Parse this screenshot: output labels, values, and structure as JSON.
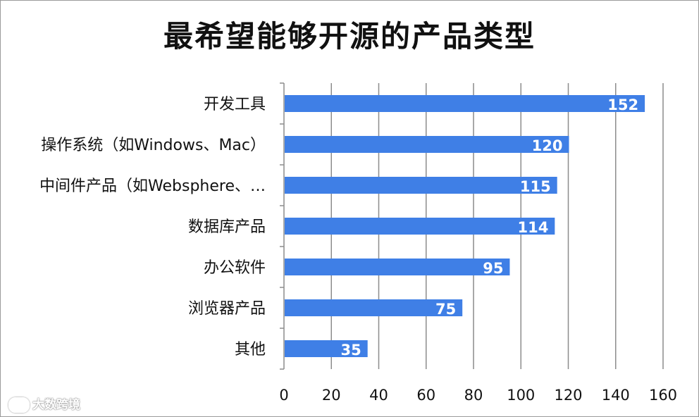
{
  "chart_data": {
    "type": "bar",
    "orientation": "horizontal",
    "title": "最希望能够开源的产品类型",
    "categories": [
      "开发工具",
      "操作系统（如Windows、Mac）",
      "中间件产品（如Websphere、…",
      "数据库产品",
      "办公软件",
      "浏览器产品",
      "其他"
    ],
    "values": [
      152,
      120,
      115,
      114,
      95,
      75,
      35
    ],
    "xlim": [
      0,
      160
    ],
    "xticks": [
      0,
      20,
      40,
      60,
      80,
      100,
      120,
      140,
      160
    ],
    "grid": true,
    "bar_color": "#3f7fe6",
    "data_label_color": "#ffffff"
  },
  "watermark": {
    "text": "大数跨境",
    "icon": "logo-icon"
  }
}
